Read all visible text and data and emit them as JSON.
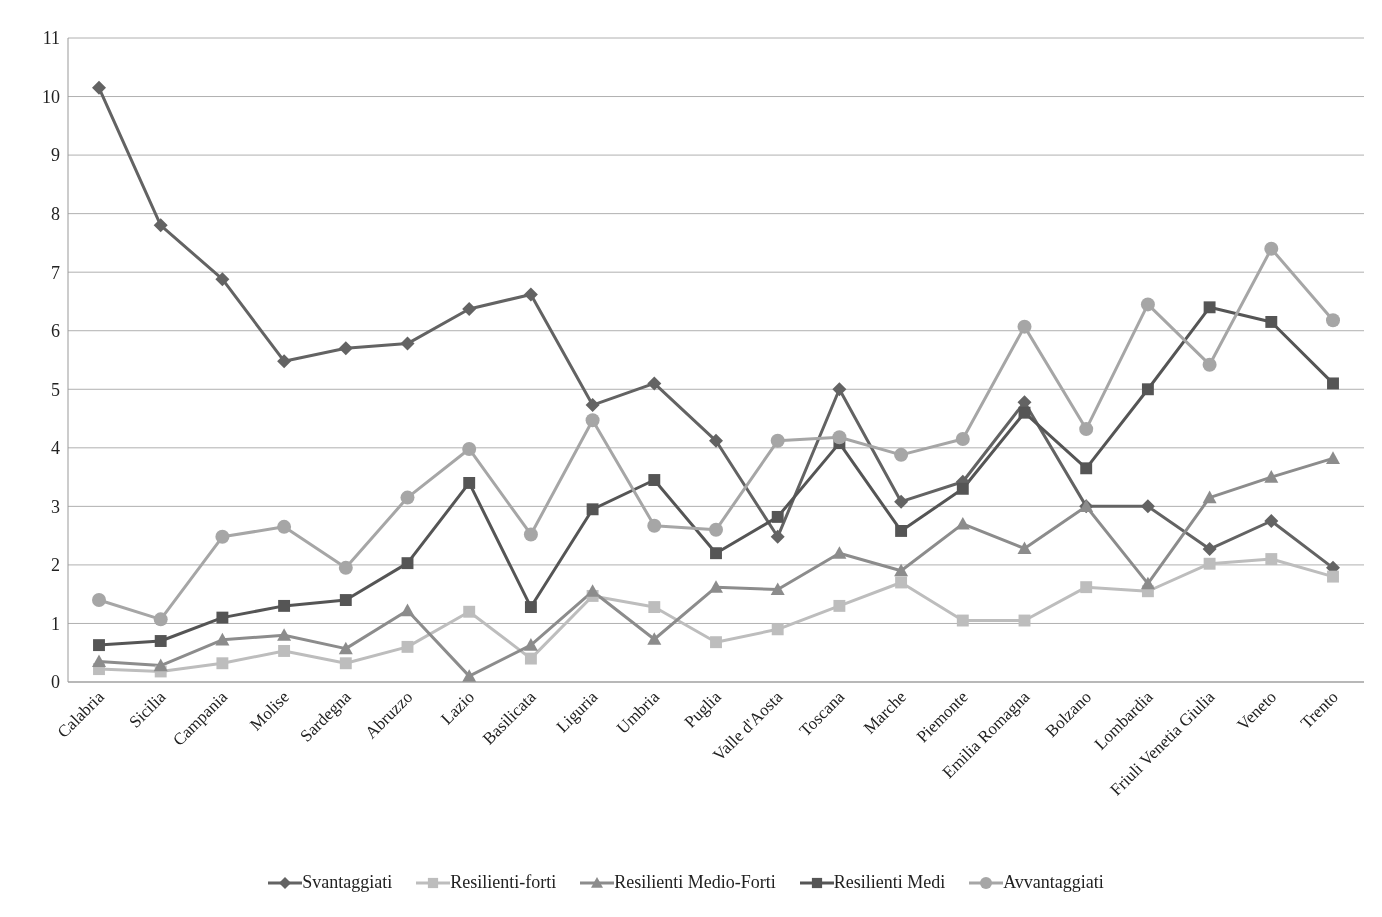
{
  "chart_data": {
    "type": "line",
    "categories": [
      "Calabria",
      "Sicilia",
      "Campania",
      "Molise",
      "Sardegna",
      "Abruzzo",
      "Lazio",
      "Basilicata",
      "Liguria",
      "Umbria",
      "Puglia",
      "Valle d'Aosta",
      "Toscana",
      "Marche",
      "Piemonte",
      "Emilia Romagna",
      "Bolzano",
      "Lombardia",
      "Friuli Venetia Giulia",
      "Veneto",
      "Trento"
    ],
    "series": [
      {
        "name": "Svantaggiati",
        "color": "#636363",
        "marker": "diamond",
        "values": [
          10.15,
          7.8,
          6.88,
          5.48,
          5.7,
          5.78,
          6.37,
          6.62,
          4.73,
          5.1,
          4.12,
          2.48,
          5.0,
          3.08,
          3.42,
          4.78,
          3.0,
          3.0,
          2.27,
          2.75,
          1.95
        ]
      },
      {
        "name": "Resilienti-forti",
        "color": "#bdbdbd",
        "marker": "square",
        "values": [
          0.22,
          0.18,
          0.32,
          0.53,
          0.32,
          0.6,
          1.2,
          0.4,
          1.47,
          1.28,
          0.68,
          0.9,
          1.3,
          1.7,
          1.05,
          1.05,
          1.62,
          1.55,
          2.02,
          2.1,
          1.8
        ]
      },
      {
        "name": "Resilienti Medio-Forti",
        "color": "#8c8c8c",
        "marker": "triangle",
        "values": [
          0.35,
          0.28,
          0.72,
          0.8,
          0.57,
          1.22,
          0.1,
          0.63,
          1.55,
          0.73,
          1.62,
          1.58,
          2.2,
          1.9,
          2.7,
          2.28,
          3.0,
          1.68,
          3.15,
          3.5,
          3.82
        ]
      },
      {
        "name": "Resilienti Medi",
        "color": "#555555",
        "marker": "square",
        "values": [
          0.63,
          0.7,
          1.1,
          1.3,
          1.4,
          2.03,
          3.4,
          1.28,
          2.95,
          3.45,
          2.2,
          2.82,
          4.08,
          2.58,
          3.3,
          4.6,
          3.65,
          5.0,
          6.4,
          6.15,
          5.1
        ]
      },
      {
        "name": "Avvantaggiati",
        "color": "#a6a6a6",
        "marker": "circle",
        "values": [
          1.4,
          1.07,
          2.48,
          2.65,
          1.95,
          3.15,
          3.98,
          2.52,
          4.47,
          2.67,
          2.6,
          4.12,
          4.18,
          3.88,
          4.15,
          6.07,
          4.32,
          6.45,
          5.42,
          7.4,
          6.18
        ]
      }
    ],
    "ylim": [
      0,
      11
    ],
    "yticks": [
      0,
      1,
      2,
      3,
      4,
      5,
      6,
      7,
      8,
      9,
      10,
      11
    ],
    "grid": "y",
    "legend": "bottom",
    "line_style": "solid"
  }
}
